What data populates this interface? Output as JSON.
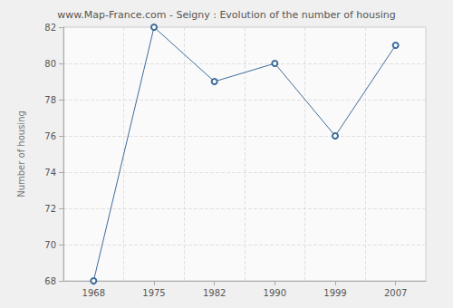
{
  "chart_data": {
    "type": "line",
    "title": "www.Map-France.com - Seigny : Evolution of the number of housing",
    "y_label": "Number of housing",
    "categories": [
      "1968",
      "1975",
      "1982",
      "1990",
      "1999",
      "2007"
    ],
    "values": [
      68,
      82,
      79,
      80,
      76,
      81
    ],
    "color": "#3e6d99",
    "marker": "circle",
    "line_style": "solid",
    "ylim": [
      68,
      82
    ],
    "yticks": [
      68,
      70,
      72,
      74,
      76,
      78,
      80,
      82
    ],
    "grid": true
  }
}
